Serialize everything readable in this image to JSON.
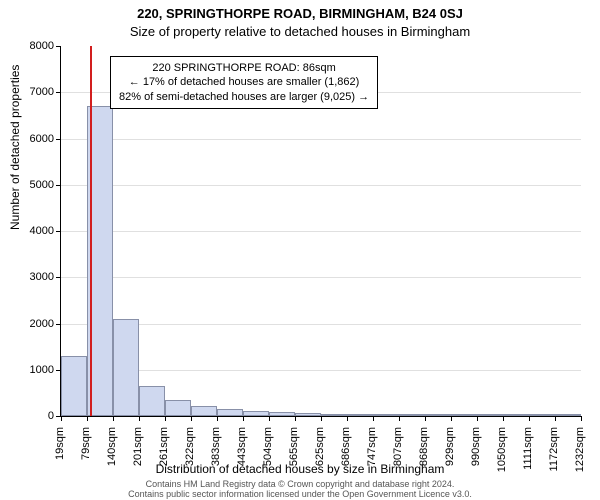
{
  "title_main": "220, SPRINGTHORPE ROAD, BIRMINGHAM, B24 0SJ",
  "title_sub": "Size of property relative to detached houses in Birmingham",
  "ylabel": "Number of detached properties",
  "xlabel": "Distribution of detached houses by size in Birmingham",
  "footer_line1": "Contains HM Land Registry data © Crown copyright and database right 2024.",
  "footer_line2": "Contains public sector information licensed under the Open Government Licence v3.0.",
  "chart": {
    "type": "histogram",
    "background_color": "#ffffff",
    "grid_color": "#e0e0e0",
    "axis_color": "#000000",
    "bar_fill": "#cfd8ef",
    "bar_border": "#8890a8",
    "marker_color": "#d21e1e",
    "ylim": [
      0,
      8000
    ],
    "ytick_step": 1000,
    "xticks": [
      "19sqm",
      "79sqm",
      "140sqm",
      "201sqm",
      "261sqm",
      "322sqm",
      "383sqm",
      "443sqm",
      "504sqm",
      "565sqm",
      "625sqm",
      "686sqm",
      "747sqm",
      "807sqm",
      "868sqm",
      "929sqm",
      "990sqm",
      "1050sqm",
      "1111sqm",
      "1172sqm",
      "1232sqm"
    ],
    "xrange": [
      19,
      1232
    ],
    "values": [
      1300,
      6700,
      2100,
      650,
      350,
      220,
      150,
      110,
      80,
      60,
      45,
      35,
      30,
      25,
      20,
      18,
      15,
      12,
      10,
      8
    ],
    "bar_width_ratio": 1.0,
    "marker_x": 86
  },
  "annotation": {
    "line1": "220 SPRINGTHORPE ROAD: 86sqm",
    "line2": "← 17% of detached houses are smaller (1,862)",
    "line3": "82% of semi-detached houses are larger (9,025) →",
    "border_color": "#000000",
    "background": "#ffffff",
    "fontsize": 11
  }
}
